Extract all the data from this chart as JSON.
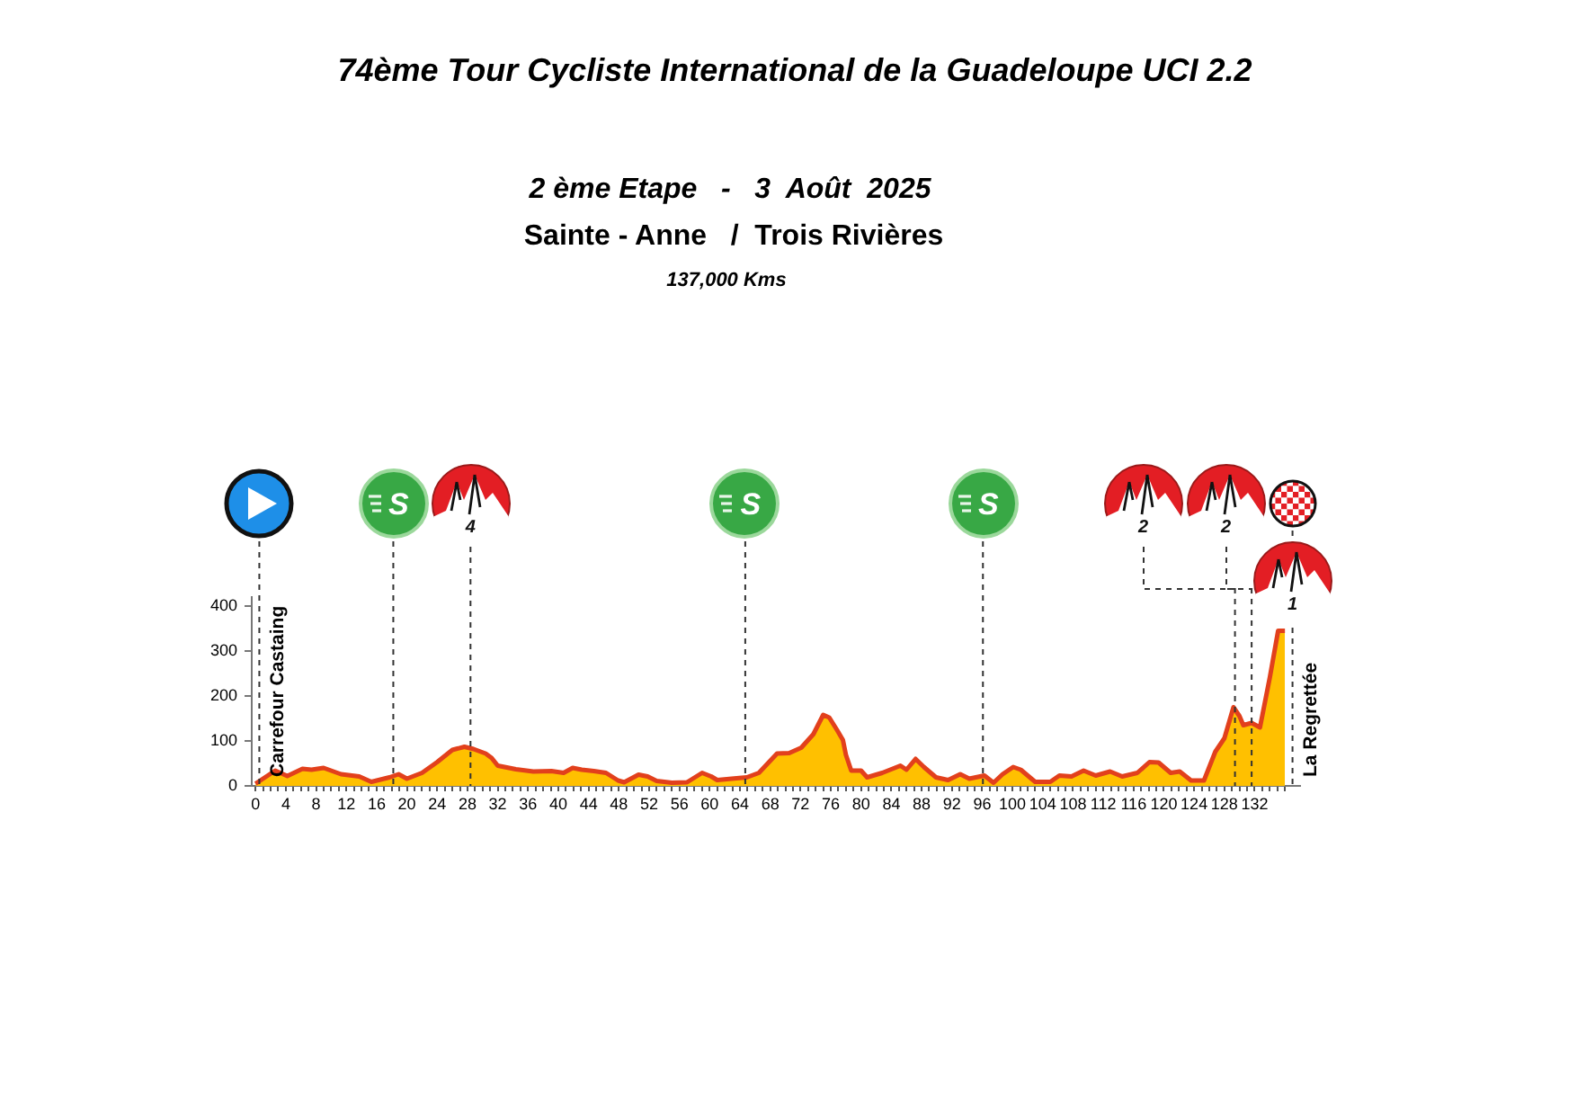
{
  "chart_data": {
    "type": "area",
    "title": "74ème Tour Cycliste International de la Guadeloupe UCI 2.2",
    "subtitle": "2 ème Etape   -   3  Août  2025",
    "annotations": [
      "Sainte - Anne   /  Trois Rivières",
      "137,000 Kms",
      "4",
      "2",
      "2",
      "1"
    ],
    "color": "#ffc000",
    "marker": "none",
    "x": [
      0,
      2.6,
      4.2,
      6.2,
      7.4,
      9,
      11.3,
      13.7,
      15.3,
      17.7,
      18.9,
      20,
      22,
      24,
      26,
      27.6,
      28.8,
      30.4,
      31.2,
      32,
      34.4,
      36.7,
      39.1,
      40.7,
      41.9,
      43.1,
      44.7,
      46.3,
      47.9,
      48.7,
      50.6,
      51.8,
      53,
      55,
      57,
      59,
      60.2,
      61,
      62.9,
      64.9,
      66.5,
      68.9,
      70.5,
      72.1,
      73.7,
      75,
      75.8,
      76.8,
      77.6,
      78,
      78.7,
      80,
      80.8,
      82.8,
      85.2,
      86,
      87.2,
      88.3,
      89.9,
      91.5,
      93.1,
      94.3,
      96.3,
      97.5,
      98.7,
      100.1,
      101.1,
      103,
      105,
      106.2,
      107.8,
      109.4,
      111,
      112.9,
      114.5,
      116.5,
      118.1,
      119.3,
      120.9,
      122.1,
      123.6,
      125.3,
      126.8,
      128,
      129.2,
      130,
      130.5,
      131.6,
      132.7,
      134,
      135.1,
      136
    ],
    "values": [
      5,
      34,
      22,
      38,
      36,
      40,
      26,
      21,
      9,
      19,
      26,
      16,
      29,
      53,
      80,
      87,
      82,
      72,
      62,
      45,
      37,
      32,
      33,
      29,
      40,
      36,
      33,
      29,
      12,
      8,
      25,
      21,
      11,
      7,
      8,
      29,
      21,
      13,
      16,
      19,
      29,
      72,
      73,
      85,
      115,
      158,
      152,
      125,
      102,
      69,
      34,
      34,
      19,
      29,
      45,
      36,
      60,
      42,
      19,
      13,
      26,
      16,
      23,
      7,
      26,
      42,
      36,
      9,
      9,
      23,
      21,
      34,
      23,
      32,
      21,
      29,
      53,
      52,
      29,
      32,
      12,
      12,
      76,
      106,
      175,
      155,
      135,
      140,
      130,
      241,
      345,
      345
    ],
    "xlim": [
      -0.5,
      138
    ],
    "xticks": [
      0,
      {
        "value": 1,
        "label": null
      },
      {
        "value": 2,
        "label": null
      },
      {
        "value": 3,
        "label": null
      },
      4,
      {
        "value": 5,
        "label": null
      },
      {
        "value": 6,
        "label": null
      },
      {
        "value": 7,
        "label": null
      },
      8,
      {
        "value": 9,
        "label": null
      },
      {
        "value": 10,
        "label": null
      },
      {
        "value": 11,
        "label": null
      },
      12,
      {
        "value": 13,
        "label": null
      },
      {
        "value": 14,
        "label": null
      },
      {
        "value": 15,
        "label": null
      },
      16,
      {
        "value": 17,
        "label": null
      },
      {
        "value": 18,
        "label": null
      },
      {
        "value": 19,
        "label": null
      },
      20,
      {
        "value": 21,
        "label": null
      },
      {
        "value": 22,
        "label": null
      },
      {
        "value": 23,
        "label": null
      },
      24,
      {
        "value": 25,
        "label": null
      },
      {
        "value": 26,
        "label": null
      },
      {
        "value": 27,
        "label": null
      },
      28,
      {
        "value": 29,
        "label": null
      },
      {
        "value": 30,
        "label": null
      },
      {
        "value": 31,
        "label": null
      },
      32,
      {
        "value": 33,
        "label": null
      },
      {
        "value": 34,
        "label": null
      },
      {
        "value": 35,
        "label": null
      },
      36,
      {
        "value": 37,
        "label": null
      },
      {
        "value": 38,
        "label": null
      },
      {
        "value": 39,
        "label": null
      },
      40,
      {
        "value": 41,
        "label": null
      },
      {
        "value": 42,
        "label": null
      },
      {
        "value": 43,
        "label": null
      },
      44,
      {
        "value": 45,
        "label": null
      },
      {
        "value": 46,
        "label": null
      },
      {
        "value": 47,
        "label": null
      },
      48,
      {
        "value": 49,
        "label": null
      },
      {
        "value": 50,
        "label": null
      },
      {
        "value": 51,
        "label": null
      },
      52,
      {
        "value": 53,
        "label": null
      },
      {
        "value": 54,
        "label": null
      },
      {
        "value": 55,
        "label": null
      },
      56,
      {
        "value": 57,
        "label": null
      },
      {
        "value": 58,
        "label": null
      },
      {
        "value": 59,
        "label": null
      },
      60,
      {
        "value": 61,
        "label": null
      },
      {
        "value": 62,
        "label": null
      },
      {
        "value": 63,
        "label": null
      },
      64,
      {
        "value": 65,
        "label": null
      },
      {
        "value": 66,
        "label": null
      },
      {
        "value": 67,
        "label": null
      },
      68,
      {
        "value": 69,
        "label": null
      },
      {
        "value": 70,
        "label": null
      },
      {
        "value": 71,
        "label": null
      },
      72,
      {
        "value": 73,
        "label": null
      },
      {
        "value": 74,
        "label": null
      },
      {
        "value": 75,
        "label": null
      },
      76,
      {
        "value": 77,
        "label": null
      },
      {
        "value": 78,
        "label": null
      },
      {
        "value": 79,
        "label": null
      },
      80,
      {
        "value": 81,
        "label": null
      },
      {
        "value": 82,
        "label": null
      },
      {
        "value": 83,
        "label": null
      },
      84,
      {
        "value": 85,
        "label": null
      },
      {
        "value": 86,
        "label": null
      },
      {
        "value": 87,
        "label": null
      },
      88,
      {
        "value": 89,
        "label": null
      },
      {
        "value": 90,
        "label": null
      },
      {
        "value": 91,
        "label": null
      },
      92,
      {
        "value": 93,
        "label": null
      },
      {
        "value": 94,
        "label": null
      },
      {
        "value": 95,
        "label": null
      },
      96,
      {
        "value": 97,
        "label": null
      },
      {
        "value": 98,
        "label": null
      },
      {
        "value": 99,
        "label": null
      },
      100,
      {
        "value": 101,
        "label": null
      },
      {
        "value": 102,
        "label": null
      },
      {
        "value": 103,
        "label": null
      },
      104,
      {
        "value": 105,
        "label": null
      },
      {
        "value": 106,
        "label": null
      },
      {
        "value": 107,
        "label": null
      },
      108,
      {
        "value": 109,
        "label": null
      },
      {
        "value": 110,
        "label": null
      },
      {
        "value": 111,
        "label": null
      },
      112,
      {
        "value": 113,
        "label": null
      },
      {
        "value": 114,
        "label": null
      },
      {
        "value": 115,
        "label": null
      },
      116,
      {
        "value": 117,
        "label": null
      },
      {
        "value": 118,
        "label": null
      },
      {
        "value": 119,
        "label": null
      },
      120,
      {
        "value": 121,
        "label": null
      },
      {
        "value": 122,
        "label": null
      },
      {
        "value": 123,
        "label": null
      },
      124,
      {
        "value": 125,
        "label": null
      },
      {
        "value": 126,
        "label": null
      },
      {
        "value": 127,
        "label": null
      },
      128,
      {
        "value": 129,
        "label": null
      },
      {
        "value": 130,
        "label": null
      },
      {
        "value": 131,
        "label": null
      },
      132,
      {
        "value": 133,
        "label": null
      },
      {
        "value": 134,
        "label": null
      },
      {
        "value": 135,
        "label": null
      },
      {
        "value": 136,
        "label": null
      }
    ],
    "ylim": [
      0,
      420
    ],
    "yticks": [
      0,
      100,
      200,
      300,
      400
    ],
    "ref_lines": [
      {
        "axis": "x",
        "value": 0.5,
        "label": "Carrefour Castaing",
        "color": "#333333",
        "line_style": "dashed"
      },
      {
        "axis": "x",
        "value": 18.2,
        "label": "S",
        "color": "#333333",
        "line_style": "dashed"
      },
      {
        "axis": "x",
        "value": 28.4,
        "color": "#333333",
        "line_style": "dashed"
      },
      {
        "axis": "x",
        "value": 64.7,
        "label": "S",
        "color": "#333333",
        "line_style": "dashed"
      },
      {
        "axis": "x",
        "value": 96.1,
        "label": "S",
        "color": "#333333",
        "line_style": "dashed"
      },
      {
        "axis": "x",
        "value": 129.4,
        "color": "#333333",
        "line_style": "dashed"
      },
      {
        "axis": "x",
        "value": 131.6,
        "color": "#333333",
        "line_style": "dashed"
      },
      {
        "axis": "x",
        "value": 137,
        "label": "La Regrettée",
        "color": "#333333",
        "line_style": "dashed"
      }
    ]
  }
}
